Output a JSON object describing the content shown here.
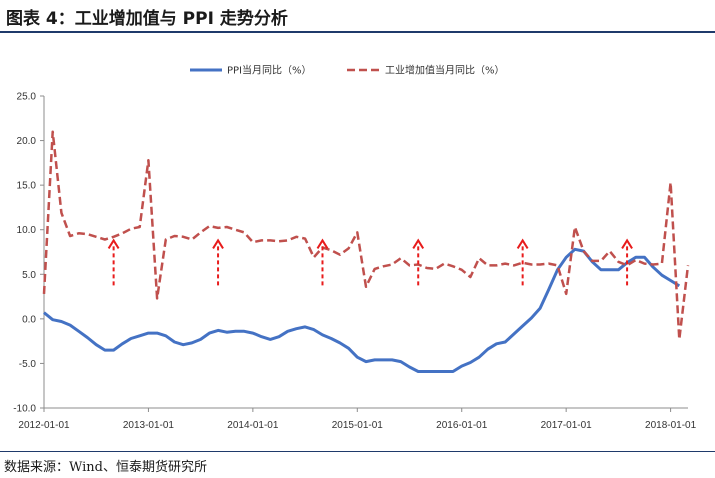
{
  "header": {
    "title": "图表 4：工业增加值与 PPI 走势分析"
  },
  "footer": {
    "source": "数据来源：Wind、恒泰期货研究所"
  },
  "colors": {
    "ppi": "#4472c4",
    "industrial": "#c0504d",
    "arrow": "#e81c1c",
    "rule": "#1f3a6b"
  },
  "chart_data": {
    "type": "line",
    "ylim": [
      -10,
      25
    ],
    "yticks": [
      -10,
      -5,
      0,
      5,
      10,
      15,
      20,
      25
    ],
    "ytick_labels": [
      "-10.0",
      "-5.0",
      "0.0",
      "5.0",
      "10.0",
      "15.0",
      "20.0",
      "25.0"
    ],
    "xlim": [
      "2012-01",
      "2018-03"
    ],
    "xticks": [
      "2012-01",
      "2013-01",
      "2014-01",
      "2015-01",
      "2016-01",
      "2017-01",
      "2018-01"
    ],
    "xtick_labels": [
      "2012-01-01",
      "2013-01-01",
      "2014-01-01",
      "2015-01-01",
      "2016-01-01",
      "2017-01-01",
      "2018-01-01"
    ],
    "legend_position": "top-center",
    "grid": false,
    "series": [
      {
        "name": "PPI当月同比（%）",
        "style": "solid",
        "x": [
          "2012-01",
          "2012-02",
          "2012-03",
          "2012-04",
          "2012-05",
          "2012-06",
          "2012-07",
          "2012-08",
          "2012-09",
          "2012-10",
          "2012-11",
          "2012-12",
          "2013-01",
          "2013-02",
          "2013-03",
          "2013-04",
          "2013-05",
          "2013-06",
          "2013-07",
          "2013-08",
          "2013-09",
          "2013-10",
          "2013-11",
          "2013-12",
          "2014-01",
          "2014-02",
          "2014-03",
          "2014-04",
          "2014-05",
          "2014-06",
          "2014-07",
          "2014-08",
          "2014-09",
          "2014-10",
          "2014-11",
          "2014-12",
          "2015-01",
          "2015-02",
          "2015-03",
          "2015-04",
          "2015-05",
          "2015-06",
          "2015-07",
          "2015-08",
          "2015-09",
          "2015-10",
          "2015-11",
          "2015-12",
          "2016-01",
          "2016-02",
          "2016-03",
          "2016-04",
          "2016-05",
          "2016-06",
          "2016-07",
          "2016-08",
          "2016-09",
          "2016-10",
          "2016-11",
          "2016-12",
          "2017-01",
          "2017-02",
          "2017-03",
          "2017-04",
          "2017-05",
          "2017-06",
          "2017-07",
          "2017-08",
          "2017-09",
          "2017-10",
          "2017-11",
          "2017-12",
          "2018-01",
          "2018-02"
        ],
        "values": [
          0.7,
          -0.1,
          -0.3,
          -0.7,
          -1.4,
          -2.1,
          -2.9,
          -3.5,
          -3.5,
          -2.8,
          -2.2,
          -1.9,
          -1.6,
          -1.6,
          -1.9,
          -2.6,
          -2.9,
          -2.7,
          -2.3,
          -1.6,
          -1.3,
          -1.5,
          -1.4,
          -1.4,
          -1.6,
          -2.0,
          -2.3,
          -2.0,
          -1.4,
          -1.1,
          -0.9,
          -1.2,
          -1.8,
          -2.2,
          -2.7,
          -3.3,
          -4.3,
          -4.8,
          -4.6,
          -4.6,
          -4.6,
          -4.8,
          -5.4,
          -5.9,
          -5.9,
          -5.9,
          -5.9,
          -5.9,
          -5.3,
          -4.9,
          -4.3,
          -3.4,
          -2.8,
          -2.6,
          -1.7,
          -0.8,
          0.1,
          1.2,
          3.3,
          5.5,
          6.9,
          7.8,
          7.6,
          6.4,
          5.5,
          5.5,
          5.5,
          6.3,
          6.9,
          6.9,
          5.8,
          4.9,
          4.3,
          3.7
        ]
      },
      {
        "name": "工业增加值当月同比（%）",
        "style": "dashed",
        "x": [
          "2012-01",
          "2012-02",
          "2012-03",
          "2012-04",
          "2012-05",
          "2012-06",
          "2012-07",
          "2012-08",
          "2012-09",
          "2012-10",
          "2012-11",
          "2012-12",
          "2013-01",
          "2013-02",
          "2013-03",
          "2013-04",
          "2013-05",
          "2013-06",
          "2013-07",
          "2013-08",
          "2013-09",
          "2013-10",
          "2013-11",
          "2013-12",
          "2014-01",
          "2014-02",
          "2014-03",
          "2014-04",
          "2014-05",
          "2014-06",
          "2014-07",
          "2014-08",
          "2014-09",
          "2014-10",
          "2014-11",
          "2014-12",
          "2015-01",
          "2015-02",
          "2015-03",
          "2015-04",
          "2015-05",
          "2015-06",
          "2015-07",
          "2015-08",
          "2015-09",
          "2015-10",
          "2015-11",
          "2015-12",
          "2016-01",
          "2016-02",
          "2016-03",
          "2016-04",
          "2016-05",
          "2016-06",
          "2016-07",
          "2016-08",
          "2016-09",
          "2016-10",
          "2016-11",
          "2016-12",
          "2017-01",
          "2017-02",
          "2017-03",
          "2017-04",
          "2017-05",
          "2017-06",
          "2017-07",
          "2017-08",
          "2017-09",
          "2017-10",
          "2017-11",
          "2017-12",
          "2018-01",
          "2018-02",
          "2018-03"
        ],
        "values": [
          2.8,
          21.0,
          11.9,
          9.3,
          9.6,
          9.5,
          9.2,
          8.9,
          9.2,
          9.6,
          10.1,
          10.3,
          17.8,
          2.3,
          8.9,
          9.3,
          9.2,
          8.9,
          9.7,
          10.4,
          10.2,
          10.3,
          10.0,
          9.7,
          8.6,
          8.8,
          8.8,
          8.7,
          8.8,
          9.2,
          9.0,
          6.9,
          8.0,
          7.7,
          7.2,
          7.9,
          9.7,
          3.6,
          5.6,
          5.9,
          6.1,
          6.8,
          6.0,
          6.1,
          5.7,
          5.6,
          6.2,
          5.9,
          5.5,
          4.7,
          6.8,
          6.0,
          6.0,
          6.2,
          6.0,
          6.3,
          6.1,
          6.1,
          6.2,
          6.0,
          2.8,
          10.3,
          7.6,
          6.5,
          6.5,
          7.6,
          6.4,
          6.0,
          6.6,
          6.2,
          6.1,
          6.2,
          15.3,
          -2.3,
          6.0
        ]
      }
    ],
    "annotations": {
      "arrows_at": [
        "2012-09",
        "2013-09",
        "2014-09",
        "2015-08",
        "2016-08",
        "2017-08"
      ],
      "arrow_tip_value": 8.8
    }
  }
}
